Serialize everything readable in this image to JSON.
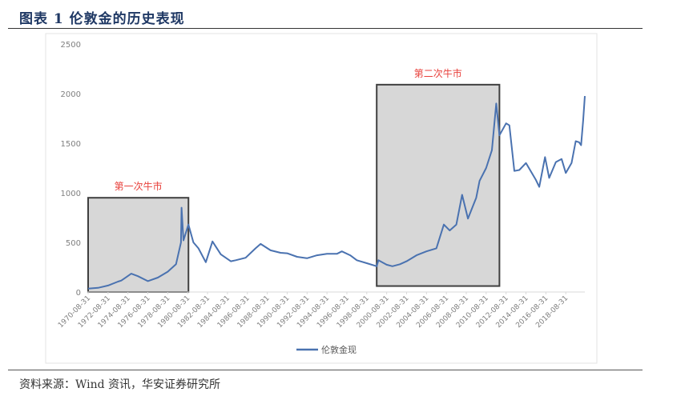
{
  "figure": {
    "title": "图表 1 伦敦金的历史表现",
    "source": "资料来源：Wind 资讯，华安证券研究所"
  },
  "chart_data": {
    "type": "line",
    "ylim": [
      0,
      2500
    ],
    "yticks": [
      0,
      500,
      1000,
      1500,
      2000,
      2500
    ],
    "xticks": [
      "1970-08-31",
      "1972-08-31",
      "1974-08-31",
      "1976-08-31",
      "1978-08-31",
      "1980-08-31",
      "1982-08-31",
      "1984-08-31",
      "1986-08-31",
      "1988-08-31",
      "1990-08-31",
      "1992-08-31",
      "1994-08-31",
      "1996-08-31",
      "1998-08-31",
      "2000-08-31",
      "2002-08-31",
      "2004-08-31",
      "2006-08-31",
      "2008-08-31",
      "2010-08-31",
      "2012-08-31",
      "2014-08-31",
      "2016-08-31",
      "2018-08-31"
    ],
    "grid": false,
    "legend_position": "bottom",
    "series": [
      {
        "name": "伦敦金现",
        "color": "#4a72b0",
        "points": [
          [
            "1970-08-31",
            35
          ],
          [
            "1971-08-31",
            42
          ],
          [
            "1972-08-31",
            65
          ],
          [
            "1973-08-31",
            105
          ],
          [
            "1973-12-31",
            115
          ],
          [
            "1974-06-30",
            150
          ],
          [
            "1974-12-31",
            185
          ],
          [
            "1975-08-31",
            160
          ],
          [
            "1976-08-31",
            110
          ],
          [
            "1977-08-31",
            145
          ],
          [
            "1978-08-31",
            205
          ],
          [
            "1979-06-30",
            280
          ],
          [
            "1979-12-31",
            500
          ],
          [
            "1980-01-21",
            850
          ],
          [
            "1980-03-31",
            520
          ],
          [
            "1980-09-30",
            680
          ],
          [
            "1981-03-31",
            500
          ],
          [
            "1981-09-30",
            440
          ],
          [
            "1982-06-30",
            300
          ],
          [
            "1983-02-28",
            510
          ],
          [
            "1983-12-31",
            380
          ],
          [
            "1984-12-31",
            310
          ],
          [
            "1985-06-30",
            320
          ],
          [
            "1986-06-30",
            345
          ],
          [
            "1987-06-30",
            440
          ],
          [
            "1987-12-31",
            485
          ],
          [
            "1988-12-31",
            420
          ],
          [
            "1989-12-31",
            395
          ],
          [
            "1990-08-31",
            390
          ],
          [
            "1991-08-31",
            355
          ],
          [
            "1992-08-31",
            340
          ],
          [
            "1993-08-31",
            370
          ],
          [
            "1994-08-31",
            385
          ],
          [
            "1995-08-31",
            385
          ],
          [
            "1996-02-28",
            410
          ],
          [
            "1996-12-31",
            370
          ],
          [
            "1997-08-31",
            320
          ],
          [
            "1998-08-31",
            290
          ],
          [
            "1999-08-31",
            260
          ],
          [
            "1999-10-31",
            320
          ],
          [
            "2000-08-31",
            275
          ],
          [
            "2001-03-31",
            260
          ],
          [
            "2001-12-31",
            280
          ],
          [
            "2002-08-31",
            310
          ],
          [
            "2003-08-31",
            370
          ],
          [
            "2004-08-31",
            410
          ],
          [
            "2005-08-31",
            440
          ],
          [
            "2006-05-31",
            680
          ],
          [
            "2006-12-31",
            620
          ],
          [
            "2007-08-31",
            680
          ],
          [
            "2008-03-31",
            980
          ],
          [
            "2008-10-31",
            740
          ],
          [
            "2009-08-31",
            950
          ],
          [
            "2009-12-31",
            1120
          ],
          [
            "2010-08-31",
            1250
          ],
          [
            "2011-03-31",
            1430
          ],
          [
            "2011-09-06",
            1900
          ],
          [
            "2011-12-31",
            1580
          ],
          [
            "2012-08-31",
            1700
          ],
          [
            "2012-12-31",
            1680
          ],
          [
            "2013-06-30",
            1220
          ],
          [
            "2013-12-31",
            1230
          ],
          [
            "2014-08-31",
            1300
          ],
          [
            "2015-08-31",
            1130
          ],
          [
            "2015-12-31",
            1060
          ],
          [
            "2016-07-31",
            1360
          ],
          [
            "2016-12-31",
            1150
          ],
          [
            "2017-08-31",
            1310
          ],
          [
            "2018-03-31",
            1340
          ],
          [
            "2018-08-31",
            1200
          ],
          [
            "2019-03-31",
            1300
          ],
          [
            "2019-08-31",
            1520
          ],
          [
            "2019-12-31",
            1510
          ],
          [
            "2020-03-15",
            1480
          ],
          [
            "2020-05-31",
            1730
          ],
          [
            "2020-07-31",
            1975
          ]
        ]
      }
    ],
    "annotations": [
      {
        "label": "第一次牛市",
        "start": "1970-08-31",
        "end": "1980-09-30",
        "ymin": 0,
        "ymax": 950
      },
      {
        "label": "第二次牛市",
        "start": "1999-08-31",
        "end": "2011-12-31",
        "ymin": 60,
        "ymax": 2090
      }
    ]
  }
}
